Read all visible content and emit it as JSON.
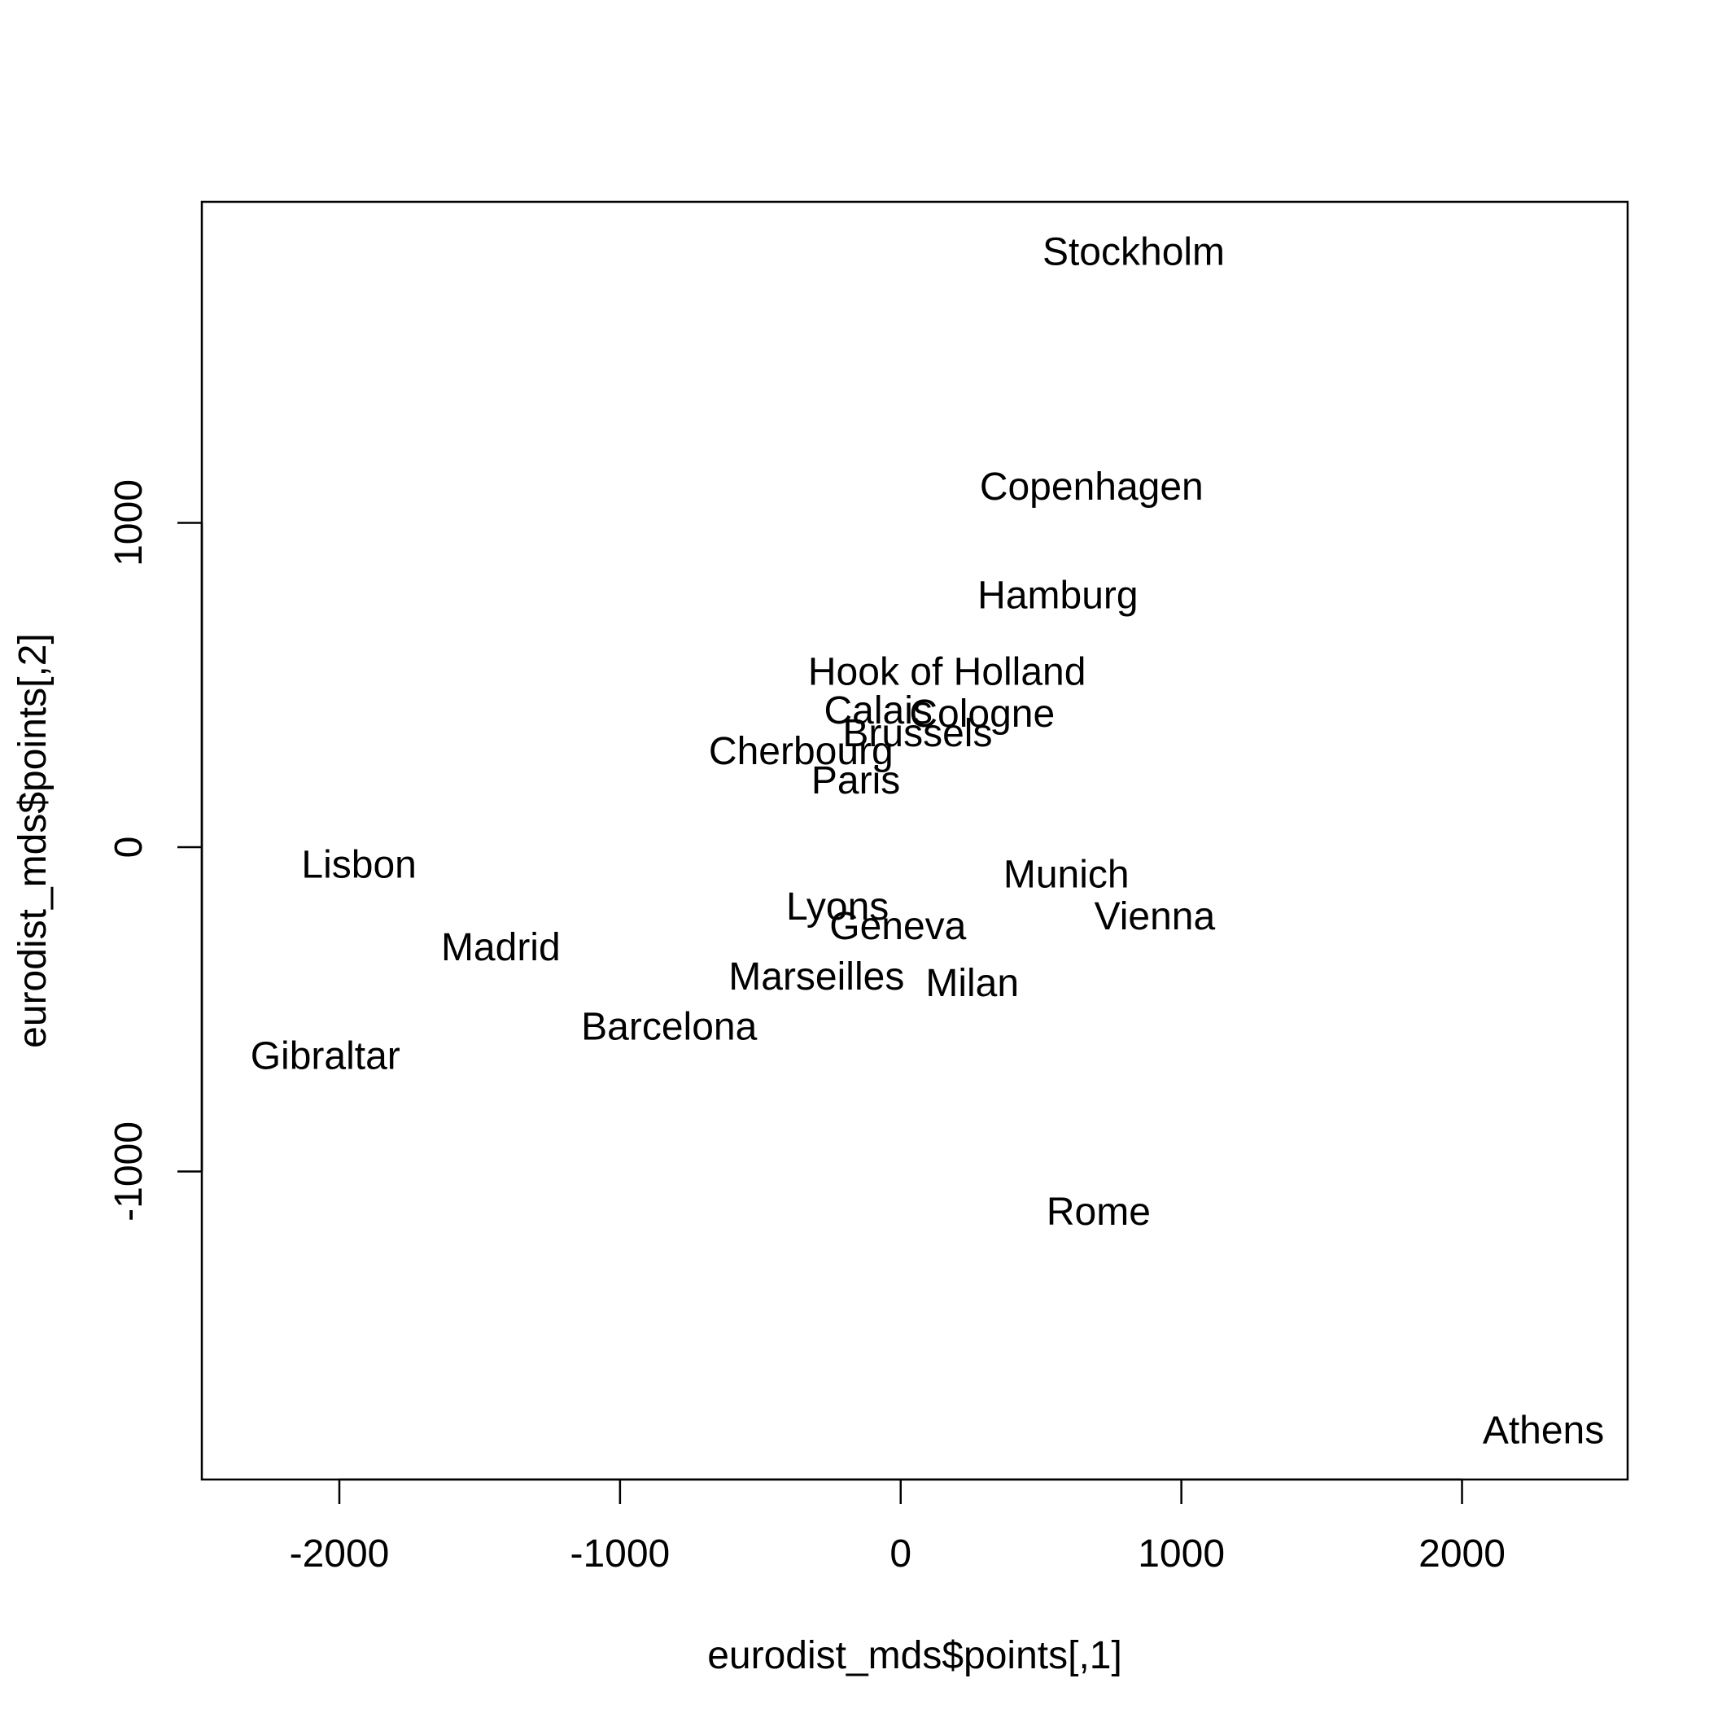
{
  "chart_data": {
    "type": "scatter",
    "title": "",
    "xlabel": "eurodist_mds$points[,1]",
    "ylabel": "eurodist_mds$points[,2]",
    "xlim": [
      -2490,
      2590
    ],
    "ylim": [
      -1950,
      1990
    ],
    "grid": false,
    "x_ticks": [
      -2000,
      -1000,
      0,
      1000,
      2000
    ],
    "y_ticks": [
      -1000,
      0,
      1000
    ],
    "x_tick_labels": [
      "-2000",
      "-1000",
      "0",
      "1000",
      "2000"
    ],
    "y_tick_labels": [
      "-1000",
      "0",
      "1000"
    ],
    "points": [
      {
        "label": "Athens",
        "x": 2290,
        "y": -1800
      },
      {
        "label": "Barcelona",
        "x": -825,
        "y": -555
      },
      {
        "label": "Brussels",
        "x": 60,
        "y": 350
      },
      {
        "label": "Calais",
        "x": -80,
        "y": 420
      },
      {
        "label": "Cherbourg",
        "x": -355,
        "y": 295
      },
      {
        "label": "Cologne",
        "x": 290,
        "y": 410
      },
      {
        "label": "Copenhagen",
        "x": 680,
        "y": 1110
      },
      {
        "label": "Geneva",
        "x": -10,
        "y": -245
      },
      {
        "label": "Gibraltar",
        "x": -2050,
        "y": -645
      },
      {
        "label": "Hamburg",
        "x": 560,
        "y": 775
      },
      {
        "label": "Hook of Holland",
        "x": 165,
        "y": 540
      },
      {
        "label": "Lisbon",
        "x": -1930,
        "y": -55
      },
      {
        "label": "Lyons",
        "x": -225,
        "y": -185
      },
      {
        "label": "Madrid",
        "x": -1425,
        "y": -310
      },
      {
        "label": "Marseilles",
        "x": -300,
        "y": -400
      },
      {
        "label": "Milan",
        "x": 255,
        "y": -420
      },
      {
        "label": "Munich",
        "x": 590,
        "y": -85
      },
      {
        "label": "Paris",
        "x": -160,
        "y": 205
      },
      {
        "label": "Rome",
        "x": 705,
        "y": -1125
      },
      {
        "label": "Stockholm",
        "x": 830,
        "y": 1835
      },
      {
        "label": "Vienna",
        "x": 905,
        "y": -215
      }
    ]
  }
}
